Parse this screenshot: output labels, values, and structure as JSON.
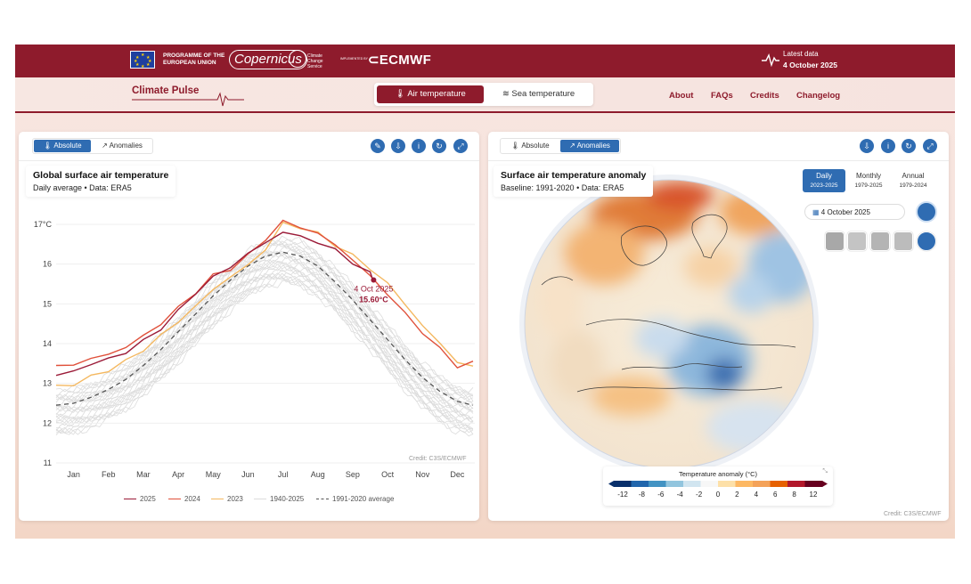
{
  "header": {
    "eu_text": "PROGRAMME OF THE EUROPEAN UNION",
    "copernicus": "opernicus",
    "c3s_text": "Climate Change Service",
    "implemented_by": "IMPLEMENTED BY",
    "ecmwf": "ECMWF",
    "latest_label": "Latest data",
    "latest_date": "4 October 2025"
  },
  "nav": {
    "brand": "Climate Pulse",
    "tabs": [
      {
        "label": "Air temperature"
      },
      {
        "label": "Sea temperature"
      }
    ],
    "links": [
      "About",
      "FAQs",
      "Credits",
      "Changelog"
    ]
  },
  "left_panel": {
    "toggle": [
      "Absolute",
      "Anomalies"
    ],
    "title": "Global surface air temperature",
    "subtitle": "Daily average • Data: ERA5",
    "credit": "Credit: C3S/ECMWF"
  },
  "right_panel": {
    "toggle": [
      "Absolute",
      "Anomalies"
    ],
    "title": "Surface air temperature anomaly",
    "subtitle": "Baseline: 1991-2020 • Data: ERA5",
    "periods": [
      {
        "label": "Daily",
        "range": "2023-2025"
      },
      {
        "label": "Monthly",
        "range": "1979-2025"
      },
      {
        "label": "Annual",
        "range": "1979-2024"
      }
    ],
    "date_value": "4 October 2025",
    "colorbar_title": "Temperature anomaly (°C)",
    "colorbar_ticks": [
      "-12",
      "-8",
      "-6",
      "-4",
      "-2",
      "0",
      "2",
      "4",
      "6",
      "8",
      "12"
    ],
    "colorbar_colors": [
      "#08306b",
      "#2166ac",
      "#4393c3",
      "#92c5de",
      "#d1e5f0",
      "#f7f7f7",
      "#fde0a8",
      "#fdb863",
      "#f4a259",
      "#e66101",
      "#b2182b",
      "#67001f"
    ],
    "credit": "Credit: C3S/ECMWF"
  },
  "colors": {
    "brand": "#8e1b2c",
    "accent": "#2f6cb2",
    "y2025": "#9b1b38",
    "y2024": "#e0503a",
    "y2023": "#f4b860",
    "history": "#dcdcdc",
    "average": "#555555"
  },
  "chart_data": {
    "type": "line",
    "title": "Global surface air temperature",
    "xlabel": "",
    "ylabel": "°C",
    "ylim": [
      11,
      17
    ],
    "yticks": [
      "17°C",
      "16",
      "15",
      "14",
      "13",
      "12",
      "11"
    ],
    "xticks": [
      "Jan",
      "Feb",
      "Mar",
      "Apr",
      "May",
      "Jun",
      "Jul",
      "Aug",
      "Sep",
      "Oct",
      "Nov",
      "Dec"
    ],
    "annotation": {
      "date": "4 Oct 2025",
      "value": "15.60°C",
      "x": 9.1,
      "y": 15.6
    },
    "series": [
      {
        "name": "2025",
        "color": "#9b1b38",
        "x": [
          0,
          0.5,
          1,
          1.5,
          2,
          2.5,
          3,
          3.5,
          4,
          4.5,
          5,
          5.5,
          6,
          6.5,
          7,
          7.5,
          8,
          8.5,
          9,
          9.1
        ],
        "values": [
          13.2,
          13.3,
          13.5,
          13.6,
          13.8,
          14.05,
          14.4,
          14.8,
          15.3,
          15.65,
          15.95,
          16.25,
          16.55,
          16.8,
          16.7,
          16.55,
          16.35,
          16.05,
          15.75,
          15.6
        ]
      },
      {
        "name": "2024",
        "color": "#e0503a",
        "x": [
          0,
          0.5,
          1,
          1.5,
          2,
          2.5,
          3,
          3.5,
          4,
          4.5,
          5,
          5.5,
          6,
          6.5,
          7,
          7.5,
          8,
          8.5,
          9,
          9.5,
          10,
          10.5,
          11,
          11.5,
          11.95
        ],
        "values": [
          13.4,
          13.5,
          13.6,
          13.75,
          13.9,
          14.2,
          14.5,
          14.9,
          15.3,
          15.7,
          15.9,
          16.2,
          16.65,
          17.05,
          16.95,
          16.75,
          16.5,
          16.1,
          15.7,
          15.25,
          14.75,
          14.3,
          13.85,
          13.45,
          13.5
        ]
      },
      {
        "name": "2023",
        "color": "#f4b860",
        "x": [
          0,
          0.5,
          1,
          1.5,
          2,
          2.5,
          3,
          3.5,
          4,
          4.5,
          5,
          5.5,
          6,
          6.5,
          7,
          7.5,
          8,
          8.5,
          9,
          9.5,
          10,
          10.5,
          11,
          11.5,
          11.95
        ],
        "values": [
          12.9,
          13.0,
          13.15,
          13.35,
          13.55,
          13.85,
          14.2,
          14.55,
          14.95,
          15.35,
          15.7,
          15.95,
          16.4,
          17.0,
          16.95,
          16.75,
          16.5,
          16.2,
          15.9,
          15.5,
          15.0,
          14.45,
          14.0,
          13.55,
          13.4
        ]
      },
      {
        "name": "1991-2020 average",
        "color": "#555555",
        "dashed": true,
        "x": [
          0,
          0.5,
          1,
          1.5,
          2,
          2.5,
          3,
          3.5,
          4,
          4.5,
          5,
          5.5,
          6,
          6.5,
          7,
          7.5,
          8,
          8.5,
          9,
          9.5,
          10,
          10.5,
          11,
          11.5,
          11.95
        ],
        "values": [
          12.45,
          12.5,
          12.65,
          12.85,
          13.1,
          13.45,
          13.85,
          14.3,
          14.75,
          15.2,
          15.6,
          15.95,
          16.2,
          16.3,
          16.2,
          15.95,
          15.55,
          15.1,
          14.6,
          14.1,
          13.6,
          13.15,
          12.8,
          12.55,
          12.45
        ]
      }
    ],
    "history_label": "1940-2025",
    "history_range": {
      "low_winter": 11.8,
      "high_summer": 16.3
    }
  }
}
